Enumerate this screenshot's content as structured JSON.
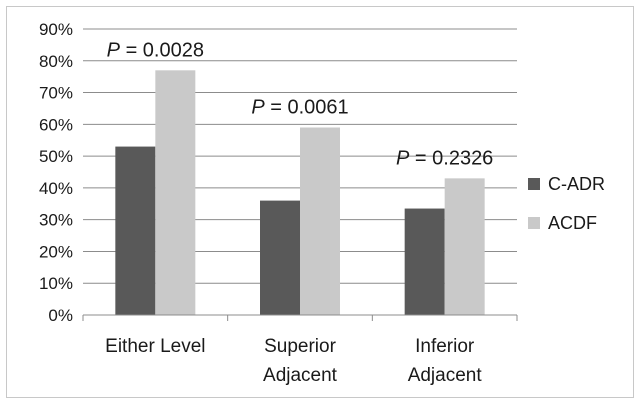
{
  "chart_data": {
    "type": "bar",
    "categories": [
      [
        "Either Level"
      ],
      [
        "Superior",
        "Adjacent"
      ],
      [
        "Inferior",
        "Adjacent"
      ]
    ],
    "series": [
      {
        "name": "C-ADR",
        "values": [
          53,
          36,
          33.5
        ],
        "color": "#595959"
      },
      {
        "name": "ACDF",
        "values": [
          77,
          59,
          43
        ],
        "color": "#c9c9c9"
      }
    ],
    "annotations": [
      {
        "prefix": "P",
        "text": " = 0.0028"
      },
      {
        "prefix": "P",
        "text": " = 0.0061"
      },
      {
        "prefix": "P",
        "text": " = 0.2326"
      }
    ],
    "ylim": [
      0,
      90
    ],
    "yticks": [
      "0%",
      "10%",
      "20%",
      "30%",
      "40%",
      "50%",
      "60%",
      "70%",
      "80%",
      "90%"
    ],
    "grid": true,
    "legend_position": "right",
    "gridline_color": "#8c8c8c"
  }
}
